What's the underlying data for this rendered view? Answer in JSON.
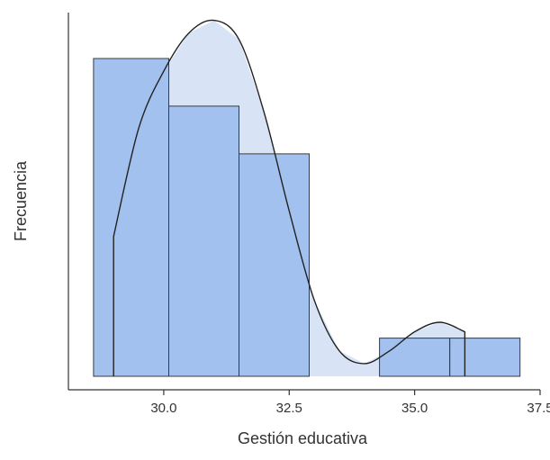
{
  "chart_data": {
    "type": "histogram",
    "title": "",
    "xlabel": "Gestión educativa",
    "ylabel": "Frecuencia",
    "xlim": [
      28.1,
      37.5
    ],
    "xticks": [
      {
        "value": 30.0,
        "label": "30.0"
      },
      {
        "value": 32.5,
        "label": "32.5"
      },
      {
        "value": 35.0,
        "label": "35.0"
      },
      {
        "value": 37.5,
        "label": "37.5"
      }
    ],
    "y_ticks_shown": false,
    "grid": false,
    "bins": [
      {
        "x0": 28.6,
        "x1": 30.1,
        "height": 1.0
      },
      {
        "x0": 30.1,
        "x1": 31.5,
        "height": 0.85
      },
      {
        "x0": 31.5,
        "x1": 32.9,
        "height": 0.7
      },
      {
        "x0": 34.3,
        "x1": 35.7,
        "height": 0.12
      },
      {
        "x0": 35.7,
        "x1": 37.1,
        "height": 0.12
      }
    ],
    "density": {
      "x": [
        29.0,
        29.0,
        29.5,
        30.0,
        30.5,
        31.0,
        31.5,
        32.0,
        32.5,
        33.0,
        33.5,
        34.0,
        34.5,
        35.0,
        35.5,
        36.0,
        36.0
      ],
      "y": [
        0.0,
        0.44,
        0.78,
        0.96,
        1.08,
        1.12,
        1.06,
        0.83,
        0.52,
        0.24,
        0.08,
        0.04,
        0.08,
        0.14,
        0.17,
        0.14,
        0.0
      ]
    },
    "colors": {
      "bar_fill": "#a3c1ef",
      "bar_stroke": "#3a3a3a",
      "density_fill": "#d8e4f6",
      "density_stroke": "#222222",
      "axis": "#333333"
    }
  }
}
